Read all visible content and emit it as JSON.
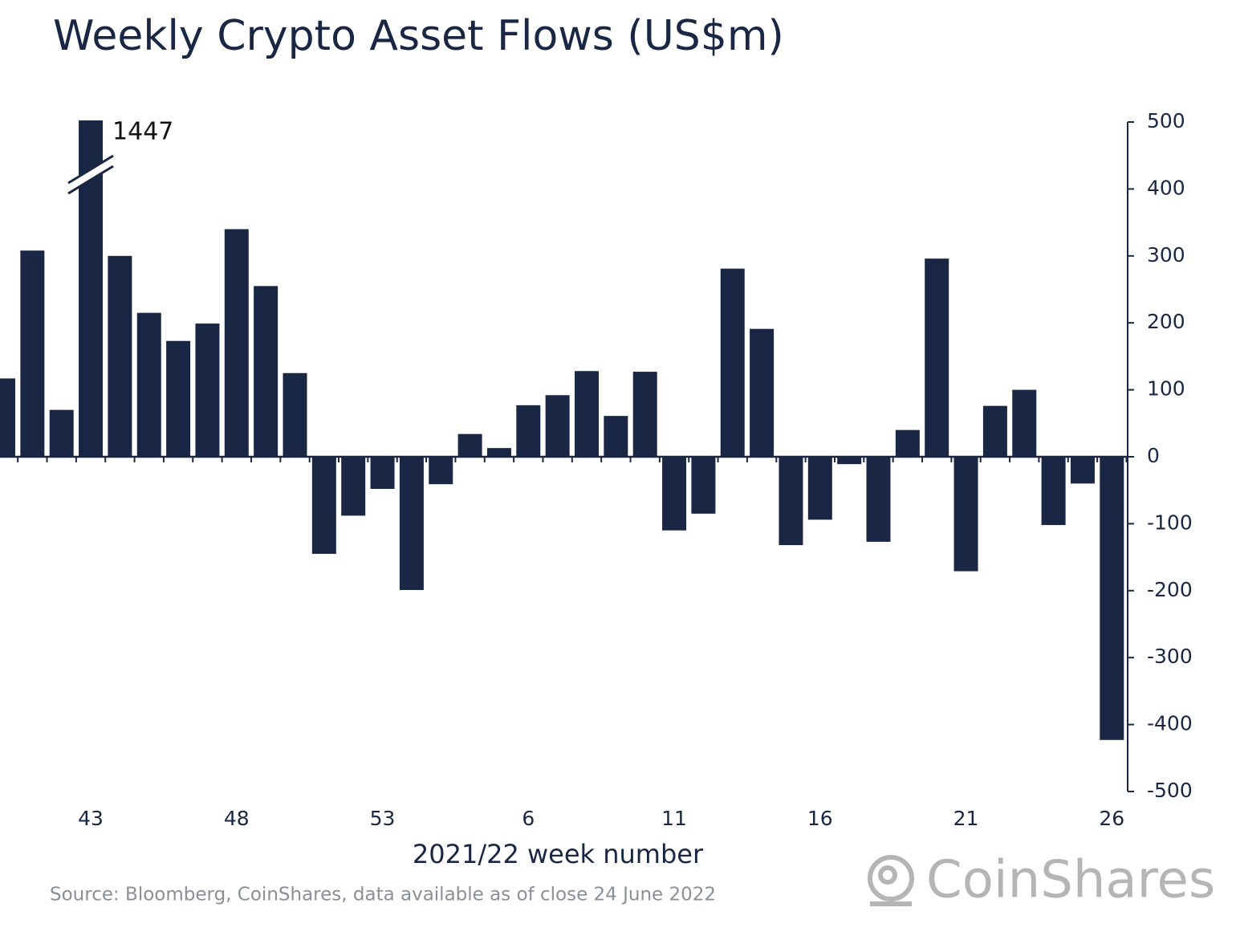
{
  "chart_data": {
    "type": "bar",
    "title": "Weekly Crypto Asset Flows (US$m)",
    "x_label": "2021/22 week number",
    "source": "Source: Bloomberg, CoinShares, data available as of close 24 June 2022",
    "brand": "CoinShares",
    "categories": [
      null,
      null,
      null,
      "43",
      null,
      null,
      null,
      null,
      "48",
      null,
      null,
      null,
      null,
      "53",
      null,
      null,
      null,
      null,
      "6",
      null,
      null,
      null,
      null,
      "11",
      null,
      null,
      null,
      null,
      "16",
      null,
      null,
      null,
      null,
      "21",
      null,
      null,
      null,
      null,
      "26"
    ],
    "values": [
      117,
      308,
      70,
      1447,
      300,
      215,
      173,
      199,
      340,
      255,
      125,
      -145,
      -88,
      -48,
      -199,
      -41,
      34,
      13,
      77,
      92,
      128,
      61,
      127,
      -110,
      -85,
      281,
      191,
      -132,
      -94,
      -11,
      -127,
      40,
      296,
      -171,
      76,
      100,
      -102,
      -40,
      -423
    ],
    "color": "#1a2744",
    "ylim": [
      -500,
      500
    ],
    "yticks": [
      500,
      400,
      300,
      200,
      100,
      0,
      -100,
      -200,
      -300,
      -400,
      -500
    ],
    "y_axis_side": "right"
  }
}
